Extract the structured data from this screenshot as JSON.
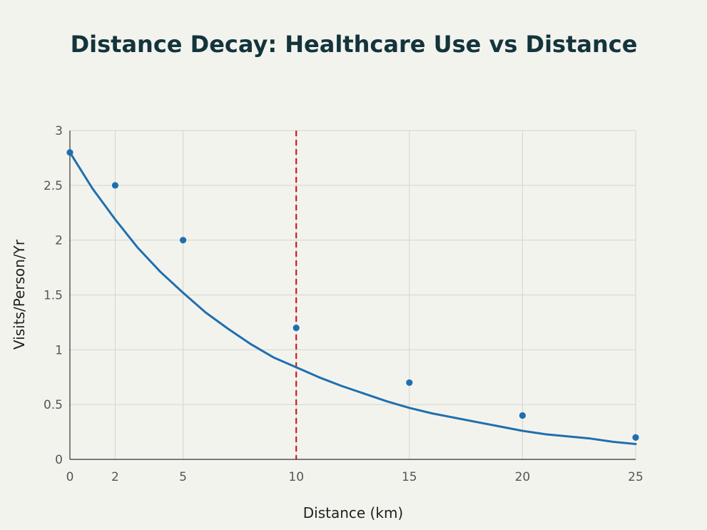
{
  "chart_data": {
    "type": "scatter",
    "title": "Distance Decay: Healthcare Use vs Distance",
    "xlabel": "Distance (km)",
    "ylabel": "Visits/Person/Yr",
    "xlim": [
      0,
      25
    ],
    "ylim": [
      0,
      3
    ],
    "x_ticks": [
      0,
      2,
      5,
      10,
      15,
      20,
      25
    ],
    "y_ticks": [
      0,
      0.5,
      1,
      1.5,
      2,
      2.5,
      3
    ],
    "x_tick_labels": [
      "0",
      "2",
      "5",
      "10",
      "15",
      "20",
      "25"
    ],
    "y_tick_labels": [
      "0",
      "0.5",
      "1",
      "1.5",
      "2",
      "2.5",
      "3"
    ],
    "grid": true,
    "series": [
      {
        "type": "scatter",
        "x": [
          0,
          2,
          5,
          10,
          15,
          20,
          25
        ],
        "y": [
          2.8,
          2.5,
          2.0,
          1.2,
          0.7,
          0.4,
          0.2
        ],
        "color": "#1f6fb0"
      },
      {
        "type": "line",
        "x": [
          0,
          1,
          2,
          3,
          4,
          5,
          6,
          7,
          8,
          9,
          10,
          11,
          12,
          13,
          14,
          15,
          16,
          17,
          18,
          19,
          20,
          21,
          22,
          23,
          24,
          25
        ],
        "y": [
          2.8,
          2.47,
          2.19,
          1.93,
          1.71,
          1.52,
          1.34,
          1.19,
          1.05,
          0.93,
          0.84,
          0.75,
          0.67,
          0.6,
          0.53,
          0.47,
          0.42,
          0.38,
          0.34,
          0.3,
          0.26,
          0.23,
          0.21,
          0.19,
          0.16,
          0.14
        ],
        "color": "#1f6fb0"
      }
    ],
    "reference_lines": [
      {
        "orientation": "vertical",
        "x": 10,
        "style": "dashed",
        "color": "#d01c1c"
      }
    ],
    "colors": {
      "background": "#f3f3ee",
      "grid": "#d4d4d0",
      "axis": "#333333",
      "title": "#13343b"
    }
  }
}
